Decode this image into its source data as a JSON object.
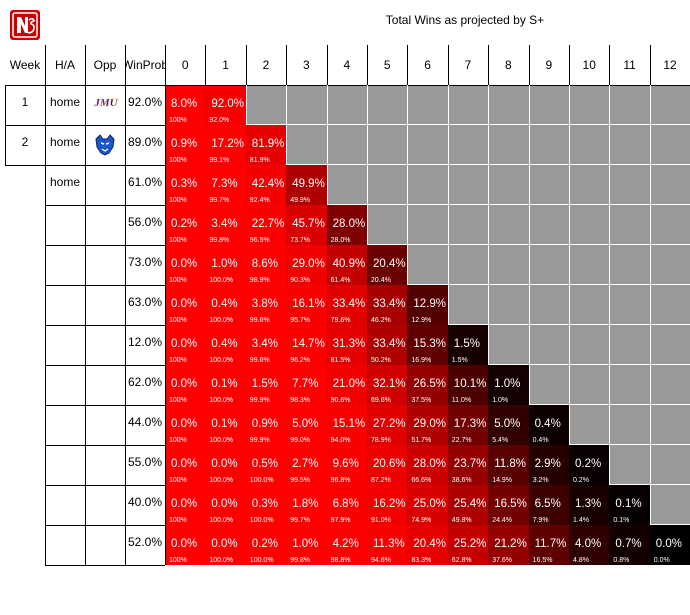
{
  "title": "Total Wins as projected by S+",
  "headers": {
    "week": "Week",
    "ha": "H/A",
    "opp": "Opp",
    "winprob_line1": "Win",
    "winprob_line2": "Prob"
  },
  "columns": [
    "0",
    "1",
    "2",
    "3",
    "4",
    "5",
    "6",
    "7",
    "8",
    "9",
    "10",
    "11",
    "12"
  ],
  "rows": [
    {
      "week": "1",
      "ha": "home",
      "opp_icon": "jmu-logo-icon",
      "opp_text": "JMU",
      "win_prob": "92.0%",
      "probs": [
        "8.0%",
        "92.0%"
      ],
      "cums": [
        "100%",
        "92.0%"
      ]
    },
    {
      "week": "2",
      "ha": "home",
      "opp_icon": "georgia-state-panther-icon",
      "opp_text": "",
      "win_prob": "89.0%",
      "probs": [
        "0.9%",
        "17.2%",
        "81.9%"
      ],
      "cums": [
        "100%",
        "99.1%",
        "81.9%"
      ]
    },
    {
      "week": "",
      "ha": "home",
      "opp_icon": "",
      "opp_text": "",
      "win_prob": "61.0%",
      "probs": [
        "0.3%",
        "7.3%",
        "42.4%",
        "49.9%"
      ],
      "cums": [
        "100%",
        "99.7%",
        "92.4%",
        "49.9%"
      ]
    },
    {
      "week": "",
      "ha": "",
      "opp_icon": "",
      "opp_text": "",
      "win_prob": "56.0%",
      "probs": [
        "0.2%",
        "3.4%",
        "22.7%",
        "45.7%",
        "28.0%"
      ],
      "cums": [
        "100%",
        "99.8%",
        "96.5%",
        "73.7%",
        "28.0%"
      ]
    },
    {
      "week": "",
      "ha": "",
      "opp_icon": "",
      "opp_text": "",
      "win_prob": "73.0%",
      "probs": [
        "0.0%",
        "1.0%",
        "8.6%",
        "29.0%",
        "40.9%",
        "20.4%"
      ],
      "cums": [
        "100%",
        "100.0%",
        "98.9%",
        "90.3%",
        "61.4%",
        "20.4%"
      ]
    },
    {
      "week": "",
      "ha": "",
      "opp_icon": "",
      "opp_text": "",
      "win_prob": "63.0%",
      "probs": [
        "0.0%",
        "0.4%",
        "3.8%",
        "16.1%",
        "33.4%",
        "33.4%",
        "12.9%"
      ],
      "cums": [
        "100%",
        "100.0%",
        "99.6%",
        "95.7%",
        "79.6%",
        "46.2%",
        "12.9%"
      ]
    },
    {
      "week": "",
      "ha": "",
      "opp_icon": "",
      "opp_text": "",
      "win_prob": "12.0%",
      "probs": [
        "0.0%",
        "0.4%",
        "3.4%",
        "14.7%",
        "31.3%",
        "33.4%",
        "15.3%",
        "1.5%"
      ],
      "cums": [
        "100%",
        "100.0%",
        "99.6%",
        "96.2%",
        "81.5%",
        "50.2%",
        "16.9%",
        "1.5%"
      ]
    },
    {
      "week": "",
      "ha": "",
      "opp_icon": "",
      "opp_text": "",
      "win_prob": "62.0%",
      "probs": [
        "0.0%",
        "0.1%",
        "1.5%",
        "7.7%",
        "21.0%",
        "32.1%",
        "26.5%",
        "10.1%",
        "1.0%"
      ],
      "cums": [
        "100%",
        "100.0%",
        "99.9%",
        "98.3%",
        "90.6%",
        "69.6%",
        "37.5%",
        "11.0%",
        "1.0%"
      ]
    },
    {
      "week": "",
      "ha": "",
      "opp_icon": "",
      "opp_text": "",
      "win_prob": "44.0%",
      "probs": [
        "0.0%",
        "0.1%",
        "0.9%",
        "5.0%",
        "15.1%",
        "27.2%",
        "29.0%",
        "17.3%",
        "5.0%",
        "0.4%"
      ],
      "cums": [
        "100%",
        "100.0%",
        "99.9%",
        "99.0%",
        "94.0%",
        "78.9%",
        "51.7%",
        "22.7%",
        "5.4%",
        "0.4%"
      ]
    },
    {
      "week": "",
      "ha": "",
      "opp_icon": "",
      "opp_text": "",
      "win_prob": "55.0%",
      "probs": [
        "0.0%",
        "0.0%",
        "0.5%",
        "2.7%",
        "9.6%",
        "20.6%",
        "28.0%",
        "23.7%",
        "11.8%",
        "2.9%",
        "0.2%"
      ],
      "cums": [
        "100%",
        "100.0%",
        "100.0%",
        "99.5%",
        "96.8%",
        "87.2%",
        "66.6%",
        "38.6%",
        "14.9%",
        "3.2%",
        "0.2%"
      ]
    },
    {
      "week": "",
      "ha": "",
      "opp_icon": "",
      "opp_text": "",
      "win_prob": "40.0%",
      "probs": [
        "0.0%",
        "0.0%",
        "0.3%",
        "1.8%",
        "6.8%",
        "16.2%",
        "25.0%",
        "25.4%",
        "16.5%",
        "6.5%",
        "1.3%",
        "0.1%"
      ],
      "cums": [
        "100%",
        "100.0%",
        "100.0%",
        "99.7%",
        "97.9%",
        "91.0%",
        "74.9%",
        "49.8%",
        "24.4%",
        "7.9%",
        "1.4%",
        "0.1%"
      ]
    },
    {
      "week": "",
      "ha": "",
      "opp_icon": "",
      "opp_text": "",
      "win_prob": "52.0%",
      "probs": [
        "0.0%",
        "0.0%",
        "0.2%",
        "1.0%",
        "4.2%",
        "11.3%",
        "20.4%",
        "25.2%",
        "21.2%",
        "11.7%",
        "4.0%",
        "0.7%",
        "0.0%"
      ],
      "cums": [
        "100%",
        "100.0%",
        "100.0%",
        "99.8%",
        "98.8%",
        "94.6%",
        "83.3%",
        "62.8%",
        "37.6%",
        "16.5%",
        "4.8%",
        "0.8%",
        "0.0%"
      ]
    }
  ],
  "colors": {
    "heat_max": "#ff0000",
    "heat_min": "#000000",
    "empty": "#999999",
    "logo_red": "#cc0000"
  },
  "logo_icon": "nc-state-logo-icon"
}
